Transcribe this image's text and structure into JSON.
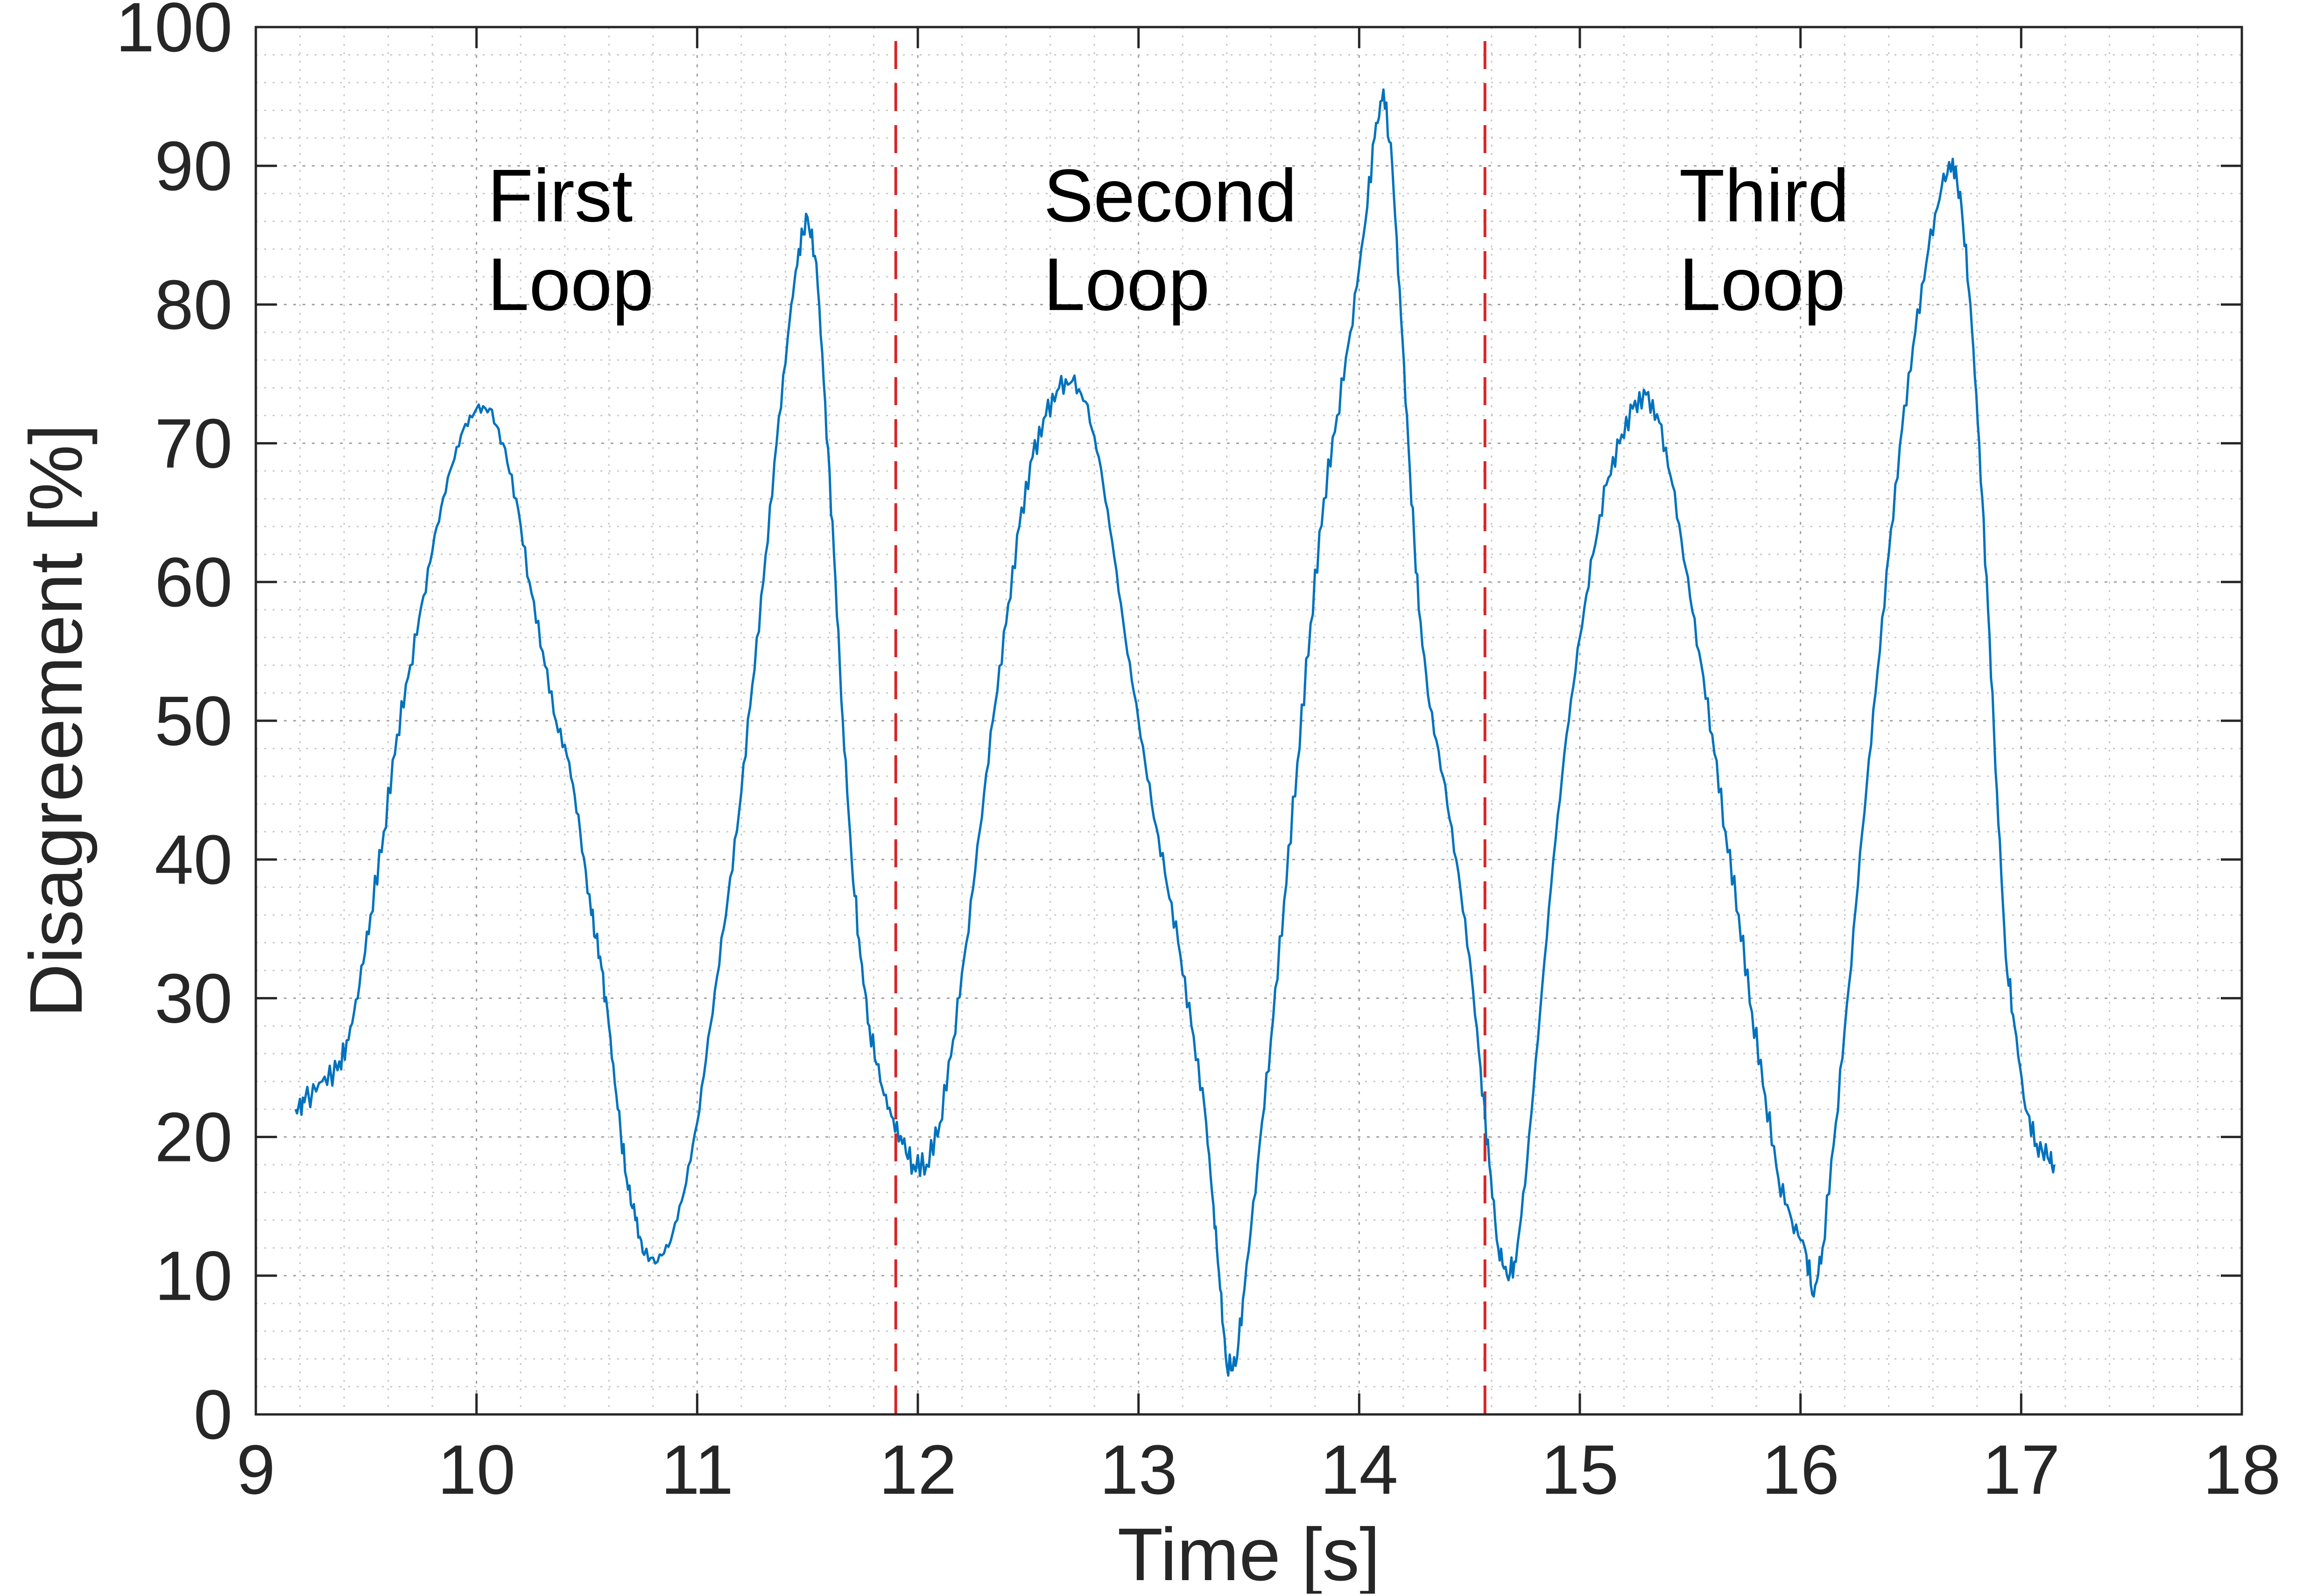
{
  "chart_data": {
    "type": "line",
    "title": "",
    "xlabel": "Time [s]",
    "ylabel": "Disagreement [%]",
    "xlim": [
      9,
      18
    ],
    "ylim": [
      0,
      100
    ],
    "xticks": [
      "9",
      "10",
      "11",
      "12",
      "13",
      "14",
      "15",
      "16",
      "17",
      "18"
    ],
    "yticks": [
      "0",
      "10",
      "20",
      "30",
      "40",
      "50",
      "60",
      "70",
      "80",
      "90",
      "100"
    ],
    "grid": true,
    "minor_grid": true,
    "legend": "none",
    "series": [
      {
        "color": "#0072BD",
        "points": [
          [
            9.18,
            22
          ],
          [
            9.22,
            22.5
          ],
          [
            9.3,
            24
          ],
          [
            9.37,
            24.8
          ],
          [
            9.42,
            27
          ],
          [
            9.47,
            31
          ],
          [
            9.52,
            36
          ],
          [
            9.58,
            42
          ],
          [
            9.64,
            49
          ],
          [
            9.7,
            54
          ],
          [
            9.76,
            59
          ],
          [
            9.82,
            64
          ],
          [
            9.88,
            68
          ],
          [
            9.94,
            71
          ],
          [
            10.0,
            72.5
          ],
          [
            10.06,
            72.5
          ],
          [
            10.12,
            70
          ],
          [
            10.18,
            66
          ],
          [
            10.24,
            60
          ],
          [
            10.3,
            55
          ],
          [
            10.36,
            50
          ],
          [
            10.42,
            47
          ],
          [
            10.47,
            42
          ],
          [
            10.52,
            36
          ],
          [
            10.56,
            33
          ],
          [
            10.6,
            28
          ],
          [
            10.64,
            22
          ],
          [
            10.68,
            17
          ],
          [
            10.72,
            14
          ],
          [
            10.76,
            11.5
          ],
          [
            10.82,
            11
          ],
          [
            10.88,
            12.5
          ],
          [
            10.94,
            16
          ],
          [
            11.0,
            21
          ],
          [
            11.06,
            28
          ],
          [
            11.12,
            35
          ],
          [
            11.18,
            42
          ],
          [
            11.24,
            51
          ],
          [
            11.3,
            60
          ],
          [
            11.36,
            70
          ],
          [
            11.42,
            79
          ],
          [
            11.46,
            84
          ],
          [
            11.5,
            86.3
          ],
          [
            11.54,
            83
          ],
          [
            11.58,
            73
          ],
          [
            11.62,
            62
          ],
          [
            11.66,
            50
          ],
          [
            11.7,
            40
          ],
          [
            11.74,
            33
          ],
          [
            11.78,
            28
          ],
          [
            11.83,
            24
          ],
          [
            11.88,
            21.5
          ],
          [
            11.93,
            19.5
          ],
          [
            11.98,
            18
          ],
          [
            12.04,
            18
          ],
          [
            12.1,
            21
          ],
          [
            12.16,
            27
          ],
          [
            12.22,
            34
          ],
          [
            12.28,
            42
          ],
          [
            12.34,
            50
          ],
          [
            12.4,
            57
          ],
          [
            12.46,
            64
          ],
          [
            12.52,
            69
          ],
          [
            12.58,
            72
          ],
          [
            12.64,
            74
          ],
          [
            12.7,
            74.5
          ],
          [
            12.76,
            73
          ],
          [
            12.82,
            69
          ],
          [
            12.88,
            63
          ],
          [
            12.94,
            56
          ],
          [
            13.0,
            50
          ],
          [
            13.06,
            44
          ],
          [
            13.12,
            39
          ],
          [
            13.18,
            34
          ],
          [
            13.24,
            28
          ],
          [
            13.3,
            22
          ],
          [
            13.34,
            15
          ],
          [
            13.37,
            9
          ],
          [
            13.4,
            3.5
          ],
          [
            13.44,
            3.5
          ],
          [
            13.48,
            9
          ],
          [
            13.54,
            18
          ],
          [
            13.6,
            27
          ],
          [
            13.66,
            37
          ],
          [
            13.72,
            47
          ],
          [
            13.78,
            57
          ],
          [
            13.84,
            66
          ],
          [
            13.9,
            72
          ],
          [
            13.96,
            78
          ],
          [
            14.02,
            85
          ],
          [
            14.07,
            92
          ],
          [
            14.11,
            95.5
          ],
          [
            14.15,
            90
          ],
          [
            14.19,
            79
          ],
          [
            14.23,
            68
          ],
          [
            14.27,
            58
          ],
          [
            14.32,
            51
          ],
          [
            14.38,
            46
          ],
          [
            14.44,
            40
          ],
          [
            14.5,
            33
          ],
          [
            14.55,
            25
          ],
          [
            14.59,
            18
          ],
          [
            14.63,
            12
          ],
          [
            14.67,
            10
          ],
          [
            14.71,
            11
          ],
          [
            14.76,
            18
          ],
          [
            14.82,
            29
          ],
          [
            14.88,
            40
          ],
          [
            14.94,
            49
          ],
          [
            15.0,
            56
          ],
          [
            15.06,
            62
          ],
          [
            15.12,
            67
          ],
          [
            15.18,
            70
          ],
          [
            15.24,
            72.5
          ],
          [
            15.3,
            73.5
          ],
          [
            15.36,
            71.5
          ],
          [
            15.42,
            67
          ],
          [
            15.48,
            61
          ],
          [
            15.54,
            55
          ],
          [
            15.6,
            49
          ],
          [
            15.66,
            42
          ],
          [
            15.72,
            36
          ],
          [
            15.78,
            29
          ],
          [
            15.84,
            23
          ],
          [
            15.9,
            17
          ],
          [
            15.96,
            14
          ],
          [
            16.02,
            12
          ],
          [
            16.06,
            8.5
          ],
          [
            16.1,
            12
          ],
          [
            16.16,
            21
          ],
          [
            16.22,
            31
          ],
          [
            16.28,
            42
          ],
          [
            16.34,
            52
          ],
          [
            16.4,
            62
          ],
          [
            16.46,
            71
          ],
          [
            16.52,
            78
          ],
          [
            16.58,
            84
          ],
          [
            16.64,
            88.5
          ],
          [
            16.69,
            90.5
          ],
          [
            16.73,
            87
          ],
          [
            16.77,
            80
          ],
          [
            16.81,
            70
          ],
          [
            16.85,
            58
          ],
          [
            16.89,
            45
          ],
          [
            16.93,
            33
          ],
          [
            16.97,
            28
          ],
          [
            17.02,
            22
          ],
          [
            17.07,
            19.5
          ],
          [
            17.12,
            18.5
          ],
          [
            17.15,
            18
          ]
        ]
      }
    ],
    "vlines": [
      {
        "x": 11.9,
        "color": "#D62728",
        "style": "dashed"
      },
      {
        "x": 14.57,
        "color": "#D62728",
        "style": "dashed"
      }
    ],
    "annotations": [
      {
        "lines": [
          "First",
          "Loop"
        ],
        "x": 10.05,
        "y": 86
      },
      {
        "lines": [
          "Second",
          "Loop"
        ],
        "x": 12.57,
        "y": 86
      },
      {
        "lines": [
          "Third",
          "Loop"
        ],
        "x": 15.45,
        "y": 86
      }
    ]
  }
}
